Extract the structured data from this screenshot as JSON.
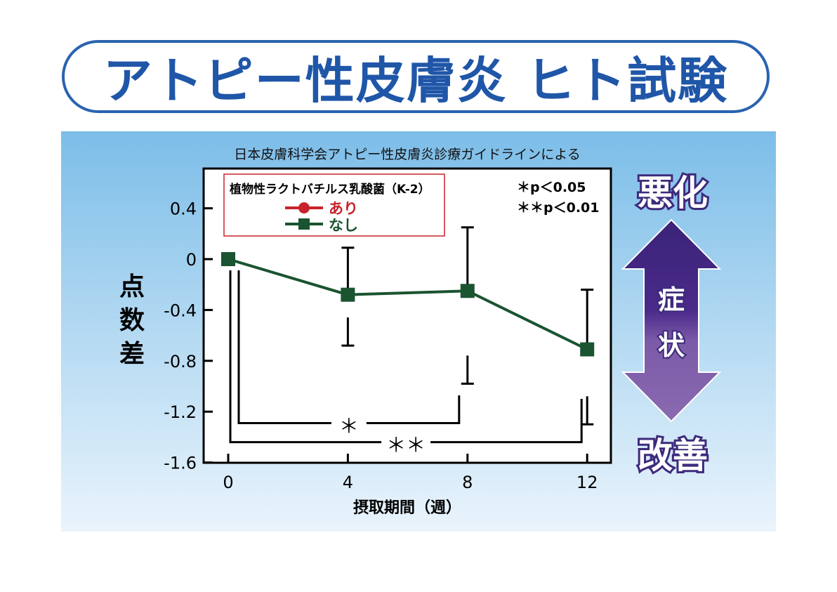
{
  "title": "アトピー性皮膚炎 ヒト試験",
  "side_labels": {
    "top": "悪化",
    "middle": [
      "症",
      "状"
    ],
    "bottom": "改善"
  },
  "chart_data": {
    "type": "line",
    "title": "日本皮膚科学会アトピー性皮膚炎診療ガイドラインによる",
    "xlabel": "摂取期間（週）",
    "ylabel": "点数差",
    "ylabel_chars": [
      "点",
      "数",
      "差"
    ],
    "xlim": [
      -0.8,
      12.8
    ],
    "ylim": [
      -1.6,
      0.71
    ],
    "xticks": [
      0,
      4,
      8,
      12
    ],
    "xtick_labels": [
      "0",
      "4",
      "8",
      "12"
    ],
    "yticks": [
      0.4,
      0,
      -0.4,
      -0.8,
      -1.2,
      -1.6
    ],
    "ytick_labels": [
      "0.4",
      "0",
      "-0.4",
      "-0.8",
      "-1.2",
      "-1.6"
    ],
    "legend": {
      "title": "植物性ラクトバチルス乳酸菌（K-2）",
      "placement": "top-left",
      "entries": [
        {
          "label": "あり",
          "color": "#c8232b",
          "marker": "circle"
        },
        {
          "label": "なし",
          "color": "#1a5430",
          "marker": "square"
        }
      ]
    },
    "series": [
      {
        "name": "なし",
        "color": "#1a5430",
        "x": [
          0,
          4,
          8,
          12
        ],
        "y": [
          0,
          -0.28,
          -0.25,
          -0.71
        ],
        "err_upper": [
          null,
          0.09,
          0.25,
          -0.24
        ],
        "err_lower": [
          null,
          -0.68,
          -0.98,
          -1.3
        ]
      }
    ],
    "significance": [
      {
        "from": 0,
        "to": 8,
        "label": "＊",
        "y": -1.29
      },
      {
        "from": 0,
        "to": 12,
        "label": "＊＊",
        "y": -1.44
      }
    ],
    "annotations": [
      "＊p＜0.05",
      "＊＊p＜0.01"
    ]
  }
}
